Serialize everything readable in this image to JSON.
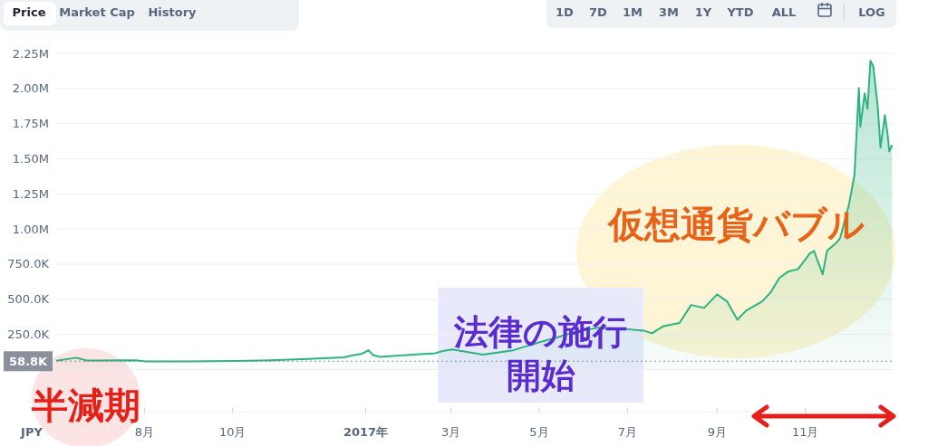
{
  "chart_data": {
    "type": "area",
    "ylabel": "JPY",
    "x": [
      "2016-06-01",
      "2016-06-15",
      "2016-06-22",
      "2016-07-26",
      "2016-08-02",
      "2016-09-01",
      "2016-10-03",
      "2016-10-28",
      "2016-11-22",
      "2016-12-17",
      "2016-12-23",
      "2016-12-29",
      "2017-01-03",
      "2017-01-06",
      "2017-01-11",
      "2017-01-24",
      "2017-02-18",
      "2017-02-24",
      "2017-03-02",
      "2017-03-23",
      "2017-04-13",
      "2017-05-04",
      "2017-05-13",
      "2017-05-25",
      "2017-06-11",
      "2017-06-28",
      "2017-07-12",
      "2017-07-18",
      "2017-07-26",
      "2017-08-06",
      "2017-08-14",
      "2017-08-23",
      "2017-09-01",
      "2017-09-08",
      "2017-09-15",
      "2017-09-21",
      "2017-10-02",
      "2017-10-08",
      "2017-10-14",
      "2017-10-20",
      "2017-10-27",
      "2017-11-04",
      "2017-11-07",
      "2017-11-13",
      "2017-11-16",
      "2017-11-23",
      "2017-11-25",
      "2017-12-01",
      "2017-12-05",
      "2017-12-08",
      "2017-12-09",
      "2017-12-12",
      "2017-12-14",
      "2017-12-16",
      "2017-12-18",
      "2017-12-21",
      "2017-12-23",
      "2017-12-26",
      "2017-12-28",
      "2017-12-29",
      "2017-12-31"
    ],
    "series": [
      {
        "color": "#2db37f",
        "values": [
          62000,
          84000,
          64000,
          66000,
          58000,
          58000,
          61000,
          66000,
          75000,
          86000,
          101000,
          110000,
          137000,
          103000,
          90000,
          99000,
          116000,
          133000,
          142000,
          105000,
          137000,
          202000,
          226000,
          266000,
          298000,
          290000,
          277000,
          258000,
          309000,
          331000,
          459000,
          438000,
          535000,
          483000,
          354000,
          419000,
          483000,
          548000,
          651000,
          696000,
          715000,
          825000,
          844000,
          677000,
          844000,
          908000,
          934000,
          1166000,
          1385000,
          2004000,
          1727000,
          1965000,
          1856000,
          2197000,
          2158000,
          1875000,
          1579000,
          1810000,
          1662000,
          1553000,
          1598000
        ]
      }
    ],
    "xlim": [
      "2016-06-01",
      "2018-01-01"
    ],
    "xticks": [
      {
        "value": "2016-08-01",
        "label": "8月"
      },
      {
        "value": "2016-10-01",
        "label": "10月"
      },
      {
        "value": "2017-01-01",
        "label": "2017年"
      },
      {
        "value": "2017-03-01",
        "label": "3月"
      },
      {
        "value": "2017-05-01",
        "label": "5月"
      },
      {
        "value": "2017-07-01",
        "label": "7月"
      },
      {
        "value": "2017-09-01",
        "label": "9月"
      },
      {
        "value": "2017-11-01",
        "label": "11月"
      }
    ],
    "ylim": [
      -300000,
      2250000
    ],
    "yticks": [
      {
        "value": 0,
        "label": null
      },
      {
        "value": 250000,
        "label": "250.0K"
      },
      {
        "value": 500000,
        "label": "500.0K"
      },
      {
        "value": 750000,
        "label": "750.0K"
      },
      {
        "value": 1000000,
        "label": "1.00M"
      },
      {
        "value": 1250000,
        "label": "1.25M"
      },
      {
        "value": 1500000,
        "label": "1.50M"
      },
      {
        "value": 1750000,
        "label": "1.75M"
      },
      {
        "value": 2000000,
        "label": "2.00M"
      },
      {
        "value": 2250000,
        "label": "2.25M"
      }
    ],
    "grid": "y",
    "ref_lines": [
      {
        "axis": "y",
        "value": 58800,
        "label": "58.8K",
        "color": "#8a919c",
        "line_style": "dotted"
      }
    ],
    "bands": [
      {
        "axis": "x",
        "from": "2017-02-20",
        "to": "2017-07-12",
        "label": "法律の施行開始",
        "color": "#e8eafc"
      }
    ],
    "annotations": [
      "半減期",
      "仮想通貨バブル",
      "Price",
      "Market Cap",
      "History",
      "1D",
      "7D",
      "1M",
      "3M",
      "1Y",
      "YTD",
      "ALL",
      "LOG"
    ]
  }
}
